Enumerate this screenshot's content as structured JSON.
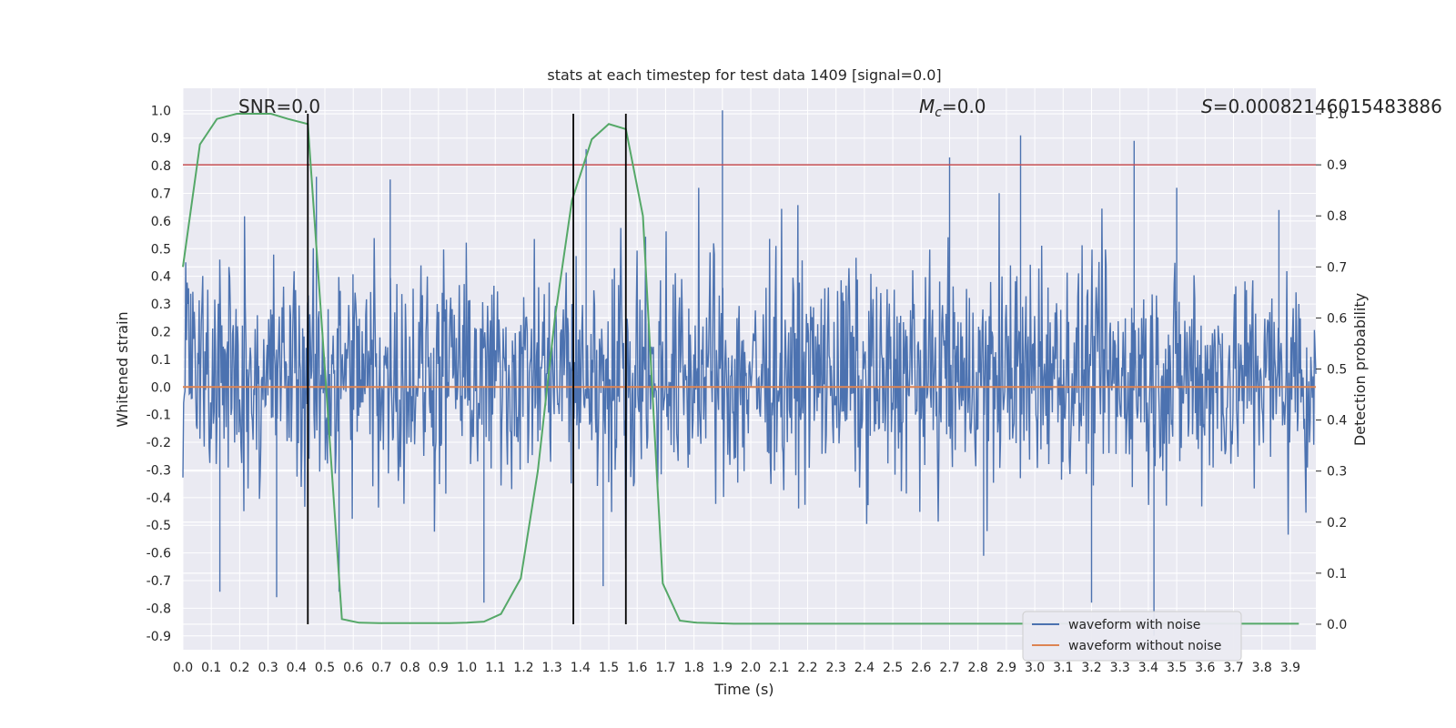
{
  "chart_data": {
    "type": "line",
    "title": "stats at each timestep for test data 1409 [signal=0.0]",
    "xlabel": "Time (s)",
    "ylabel": "Whitened strain",
    "y2label": "Detection probability",
    "xlim": [
      0.0,
      3.99
    ],
    "ylim": [
      -0.95,
      1.08
    ],
    "y2lim": [
      -0.05,
      1.05
    ],
    "x_ticks": [
      "0.0",
      "0.1",
      "0.2",
      "0.3",
      "0.4",
      "0.5",
      "0.6",
      "0.7",
      "0.8",
      "0.9",
      "1.0",
      "1.1",
      "1.2",
      "1.3",
      "1.4",
      "1.5",
      "1.6",
      "1.7",
      "1.8",
      "1.9",
      "2.0",
      "2.1",
      "2.2",
      "2.3",
      "2.4",
      "2.5",
      "2.6",
      "2.7",
      "2.8",
      "2.9",
      "3.0",
      "3.1",
      "3.2",
      "3.3",
      "3.4",
      "3.5",
      "3.6",
      "3.7",
      "3.8",
      "3.9"
    ],
    "y_ticks": [
      "1.0",
      "0.9",
      "0.8",
      "0.7",
      "0.6",
      "0.5",
      "0.4",
      "0.3",
      "0.2",
      "0.1",
      "0.0",
      "-0.1",
      "-0.2",
      "-0.3",
      "-0.4",
      "-0.5",
      "-0.6",
      "-0.7",
      "-0.8",
      "-0.9"
    ],
    "y2_ticks": [
      "1.0",
      "0.9",
      "0.8",
      "0.7",
      "0.6",
      "0.5",
      "0.4",
      "0.3",
      "0.2",
      "0.1",
      "0.0"
    ],
    "grid": true,
    "legend_position": "bottom-right",
    "legend": [
      "waveform with noise",
      "waveform without noise"
    ],
    "annotations": {
      "snr": "SNR=0.0",
      "mc_sym": "M",
      "mc_sub": "c",
      "mc_val": "=0.0",
      "s_sym": "S",
      "s_val": "=0.00082146015483886"
    },
    "colors": {
      "noise": "#4c72b0",
      "clean": "#dd8452",
      "prob": "#55a868",
      "threshold": "#c44e52",
      "marker": "#000000",
      "background": "#eaeaf2",
      "grid": "#ffffff"
    },
    "series": [
      {
        "name": "waveform with noise",
        "style": "dense noise between approximately -0.35 and 0.45 with spikes",
        "spikes": [
          {
            "x": 0.13,
            "y": -0.74
          },
          {
            "x": 0.33,
            "y": -0.76
          },
          {
            "x": 0.44,
            "y": 0.82
          },
          {
            "x": 0.47,
            "y": 0.76
          },
          {
            "x": 0.55,
            "y": -0.74
          },
          {
            "x": 0.73,
            "y": 0.75
          },
          {
            "x": 1.06,
            "y": -0.78
          },
          {
            "x": 1.42,
            "y": 0.86
          },
          {
            "x": 1.48,
            "y": -0.72
          },
          {
            "x": 1.9,
            "y": 1.0
          },
          {
            "x": 2.7,
            "y": 0.83
          },
          {
            "x": 2.82,
            "y": -0.61
          },
          {
            "x": 2.95,
            "y": 0.91
          },
          {
            "x": 3.2,
            "y": -0.78
          },
          {
            "x": 3.35,
            "y": 0.89
          },
          {
            "x": 3.42,
            "y": -0.9
          },
          {
            "x": 3.5,
            "y": 0.72
          },
          {
            "x": 3.86,
            "y": 0.64
          }
        ]
      },
      {
        "name": "waveform without noise",
        "x": [
          0.0,
          3.99
        ],
        "y": [
          0.0,
          0.0
        ]
      },
      {
        "axis": "y2",
        "x": [
          0.0,
          0.06,
          0.12,
          0.19,
          0.25,
          0.31,
          0.37,
          0.44,
          0.5,
          0.56,
          0.62,
          0.69,
          0.75,
          0.81,
          0.87,
          0.94,
          1.0,
          1.06,
          1.12,
          1.19,
          1.25,
          1.31,
          1.37,
          1.44,
          1.5,
          1.56,
          1.62,
          1.69,
          1.75,
          1.81,
          1.87,
          1.94,
          2.0,
          2.5,
          3.0,
          3.5,
          3.93
        ],
        "y": [
          0.7,
          0.94,
          0.99,
          1.0,
          1.0,
          1.0,
          0.99,
          0.98,
          0.5,
          0.01,
          0.003,
          0.002,
          0.002,
          0.002,
          0.002,
          0.002,
          0.003,
          0.005,
          0.02,
          0.09,
          0.3,
          0.6,
          0.83,
          0.95,
          0.98,
          0.97,
          0.8,
          0.08,
          0.007,
          0.003,
          0.002,
          0.001,
          0.001,
          0.001,
          0.001,
          0.001,
          0.001
        ]
      }
    ],
    "threshold_y2": 0.9,
    "vertical_markers_x": [
      0.44,
      1.375,
      1.56
    ]
  }
}
